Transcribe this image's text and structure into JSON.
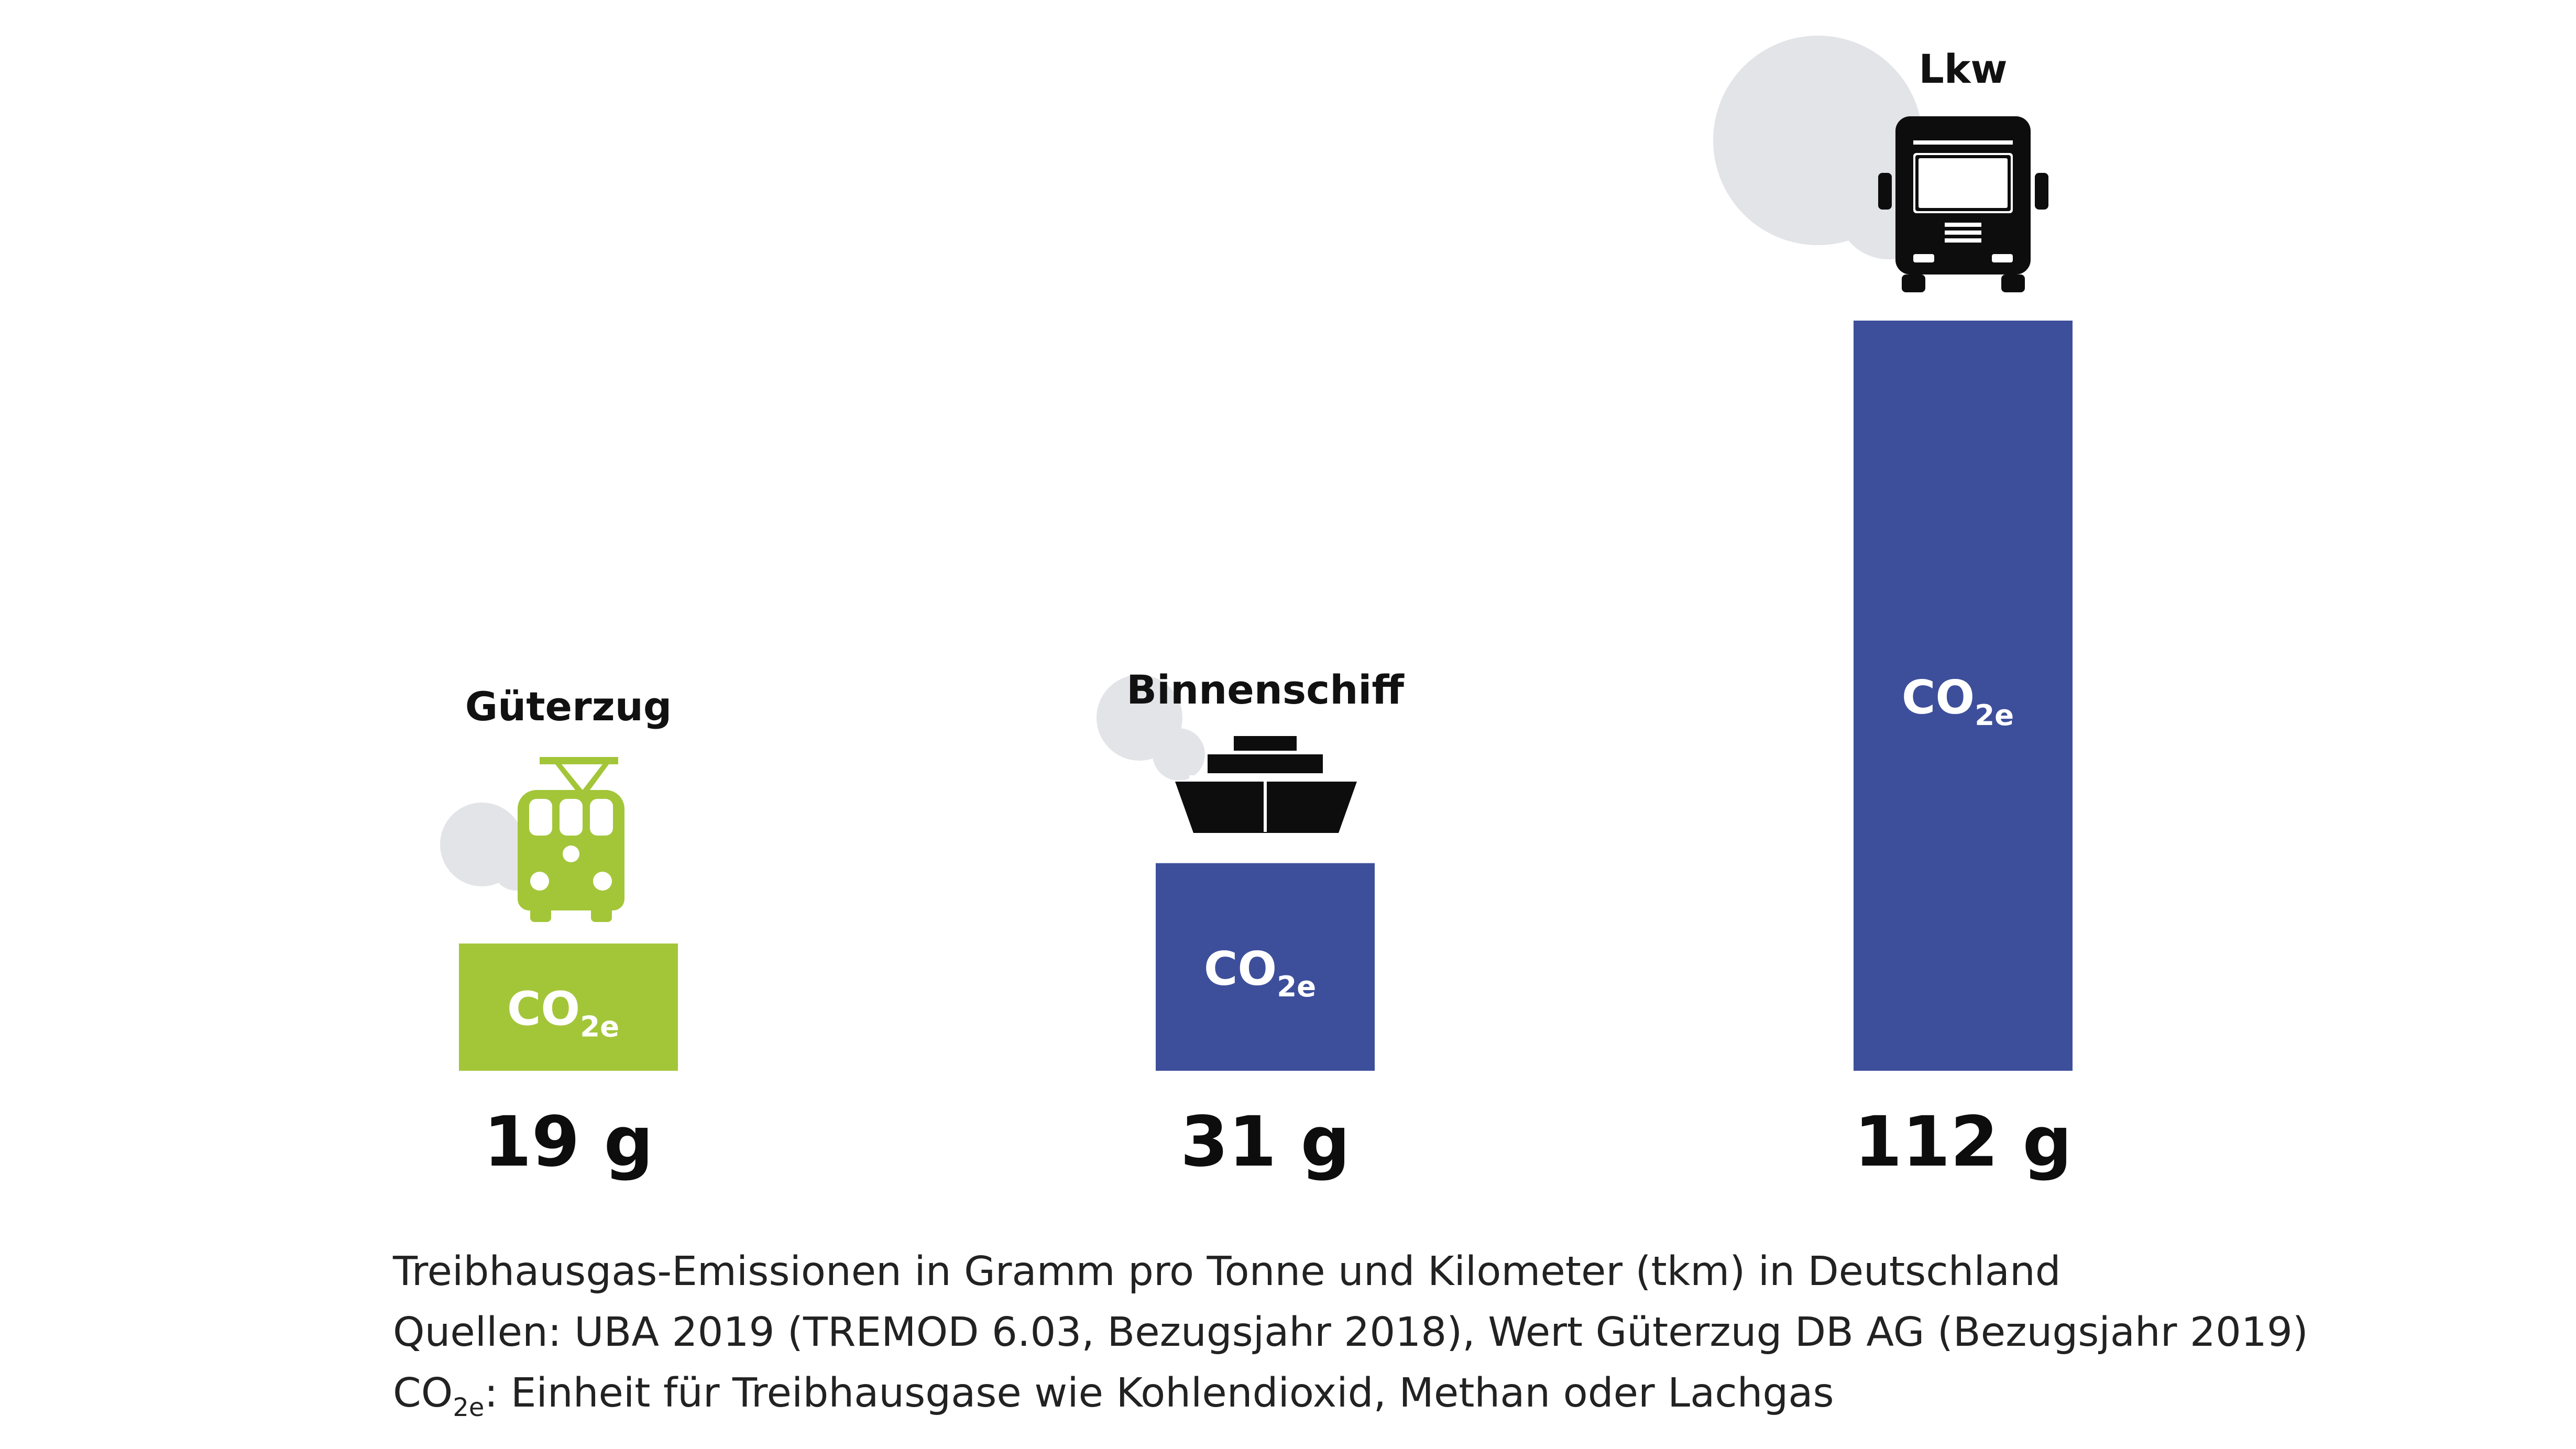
{
  "chart_data": {
    "type": "bar",
    "categories": [
      "Güterzug",
      "Binnenschiff",
      "Lkw"
    ],
    "values": [
      19,
      31,
      112
    ],
    "value_labels": [
      "19 g",
      "31 g",
      "112 g"
    ],
    "bar_text_main": "CO",
    "bar_text_sub": "2e",
    "colors": [
      "#a3c639",
      "#3d4f9b",
      "#3d4f9b"
    ],
    "icons": [
      "freight-train-icon",
      "ship-icon",
      "truck-icon"
    ],
    "ylim": [
      0,
      112
    ],
    "grid": false,
    "legend": "none"
  },
  "notes": {
    "line1": "Treibhausgas-Emissionen in Gramm pro Tonne und Kilometer (tkm) in Deutschland",
    "line2": "Quellen: UBA 2019 (TREMOD 6.03, Bezugsjahr 2018), Wert Güterzug DB AG (Bezugsjahr 2019)",
    "line3_main": "CO",
    "line3_sub": "2e",
    "line3_rest": ": Einheit für Treibhausgase wie Kohlendioxid, Methan oder Lachgas"
  },
  "colors": {
    "cloud": "#e3e4e8",
    "icon_dark": "#0d0d0d",
    "train_green": "#a3c639"
  }
}
